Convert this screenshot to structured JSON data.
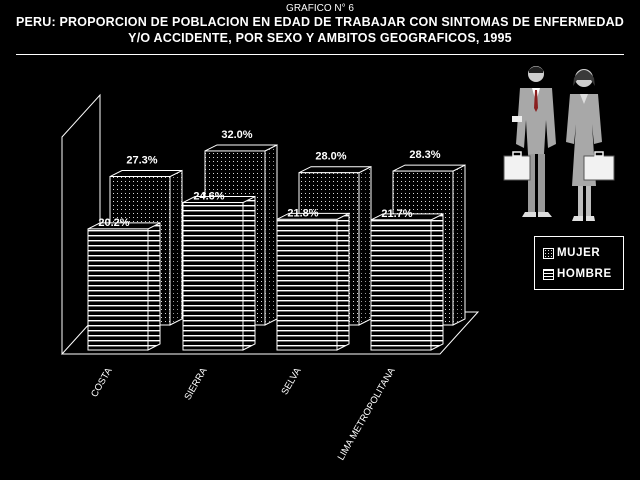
{
  "header": {
    "figure_number": "GRAFICO N° 6",
    "title_line1": "PERU: PROPORCION DE POBLACION EN EDAD DE TRABAJAR CON SINTOMAS DE ENFERMEDAD",
    "title_line2": "Y/O ACCIDENTE, POR SEXO Y AMBITOS GEOGRAFICOS, 1995"
  },
  "chart_data": {
    "type": "bar",
    "categories": [
      "COSTA",
      "SIERRA",
      "SELVA",
      "LIMA METROPOLITANA"
    ],
    "series": [
      {
        "name": "MUJER",
        "values": [
          27.3,
          32.0,
          28.0,
          28.3
        ],
        "labels": [
          "27.3%",
          "32.0%",
          "28.0%",
          "28.3%"
        ]
      },
      {
        "name": "HOMBRE",
        "values": [
          20.2,
          24.6,
          21.8,
          21.7
        ],
        "labels": [
          "20.2%",
          "24.6%",
          "21.8%",
          "21.7%"
        ]
      }
    ],
    "ylim": [
      0,
      40
    ],
    "style": "3d-bars",
    "legend_position": "right",
    "colors": {
      "background": "#000000",
      "foreground": "#ffffff"
    }
  },
  "legend": {
    "mujer": "MUJER",
    "hombre": "HOMBRE"
  }
}
